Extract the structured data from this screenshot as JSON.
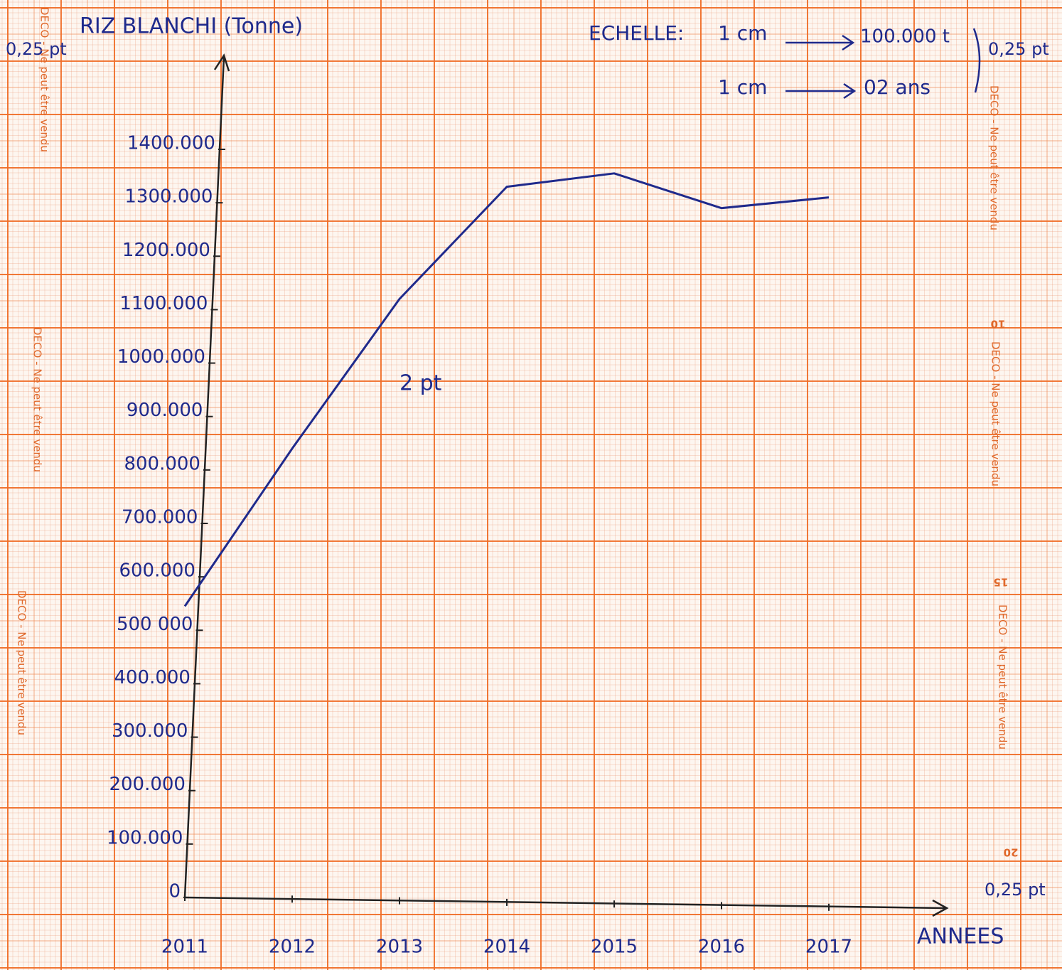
{
  "chart_data": {
    "type": "line",
    "title": "RIZ BLANCHI (Tonne)",
    "x_label": "ANNEES",
    "categories": [
      "2011",
      "2012",
      "2013",
      "2014",
      "2015",
      "2016",
      "2017"
    ],
    "values": [
      545000,
      840000,
      1120000,
      1330000,
      1355000,
      1290000,
      1310000
    ],
    "color": "#1f2a8c",
    "ylim": [
      0,
      1400000
    ],
    "yticks": [
      0,
      {
        "value": 100000,
        "label": "100.000"
      },
      {
        "value": 200000,
        "label": "200.000"
      },
      {
        "value": 300000,
        "label": "300.000"
      },
      {
        "value": 400000,
        "label": "400.000"
      },
      {
        "value": 500000,
        "label": "500 000"
      },
      {
        "value": 600000,
        "label": "600.000"
      },
      {
        "value": 700000,
        "label": "700.000"
      },
      {
        "value": 800000,
        "label": "800.000"
      },
      {
        "value": 900000,
        "label": "900.000"
      },
      {
        "value": 1000000,
        "label": "1000.000"
      },
      {
        "value": 1100000,
        "label": "1100.000"
      },
      {
        "value": 1200000,
        "label": "1200.000"
      },
      {
        "value": 1300000,
        "label": "1300.000"
      },
      {
        "value": 1400000,
        "label": "1400.000"
      }
    ],
    "scale": {
      "label": "ECHELLE:",
      "rows": [
        {
          "left": "1 cm",
          "right": "100.000 t"
        },
        {
          "left": "1 cm",
          "right": "02 ans"
        }
      ]
    },
    "marks": [
      "0,25 pt",
      "0,25 pt",
      "0,25 pt",
      "2 pt"
    ],
    "paper_text": "DECO - Ne peut être vendu",
    "paper_numbers": [
      "10",
      "15",
      "20"
    ]
  }
}
